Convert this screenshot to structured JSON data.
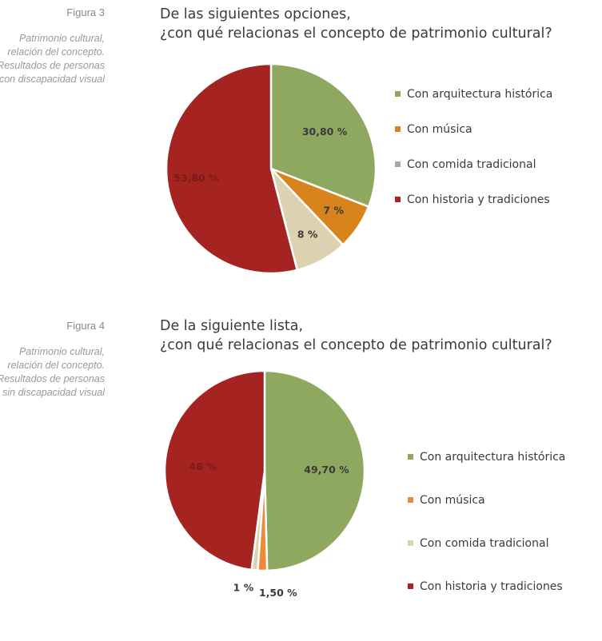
{
  "figures": [
    {
      "number": "Figura 3",
      "caption": "Patrimonio cultural, relación del concepto. Resultados de personas con discapacidad visual",
      "title_line1": "De las siguientes opciones,",
      "title_line2": "¿con qué relacionas el concepto de patrimonio cultural?"
    },
    {
      "number": "Figura 4",
      "caption": "Patrimonio cultural, relación del concepto. Resultados de personas sin discapacidad visual",
      "title_line1": "De la siguiente lista,",
      "title_line2": "¿con qué relacionas el concepto de patrimonio cultural?"
    }
  ],
  "chart_data": [
    {
      "type": "pie",
      "title": "De las siguientes opciones, ¿con qué relacionas el concepto de patrimonio cultural?",
      "categories": [
        "Con arquitectura histórica",
        "Con música",
        "Con comida tradicional",
        "Con historia y tradiciones"
      ],
      "values": [
        30.8,
        7,
        8,
        53.8
      ],
      "labels": [
        "30,80 %",
        "7 %",
        "8 %",
        "53,80 %"
      ],
      "colors": [
        "#8ea860",
        "#d8831c",
        "#dcd1b0",
        "#a52321"
      ],
      "legend_colors": [
        "#8ea860",
        "#d8831c",
        "#a6a6a6",
        "#a52321"
      ],
      "legend": "right"
    },
    {
      "type": "pie",
      "title": "De la siguiente lista, ¿con qué relacionas el concepto de patrimonio cultural?",
      "categories": [
        "Con arquitectura histórica",
        "Con música",
        "Con comida tradicional",
        "Con historia y tradiciones"
      ],
      "values": [
        49.7,
        1.5,
        1,
        48
      ],
      "labels": [
        "49,70 %",
        "1,50 %",
        "1 %",
        "48 %"
      ],
      "colors": [
        "#8ea860",
        "#ec8a3a",
        "#dcd1b0",
        "#a52321"
      ],
      "legend_colors": [
        "#8ea860",
        "#ec8a3a",
        "#dcd1b0",
        "#a52321"
      ],
      "legend": "right"
    }
  ]
}
